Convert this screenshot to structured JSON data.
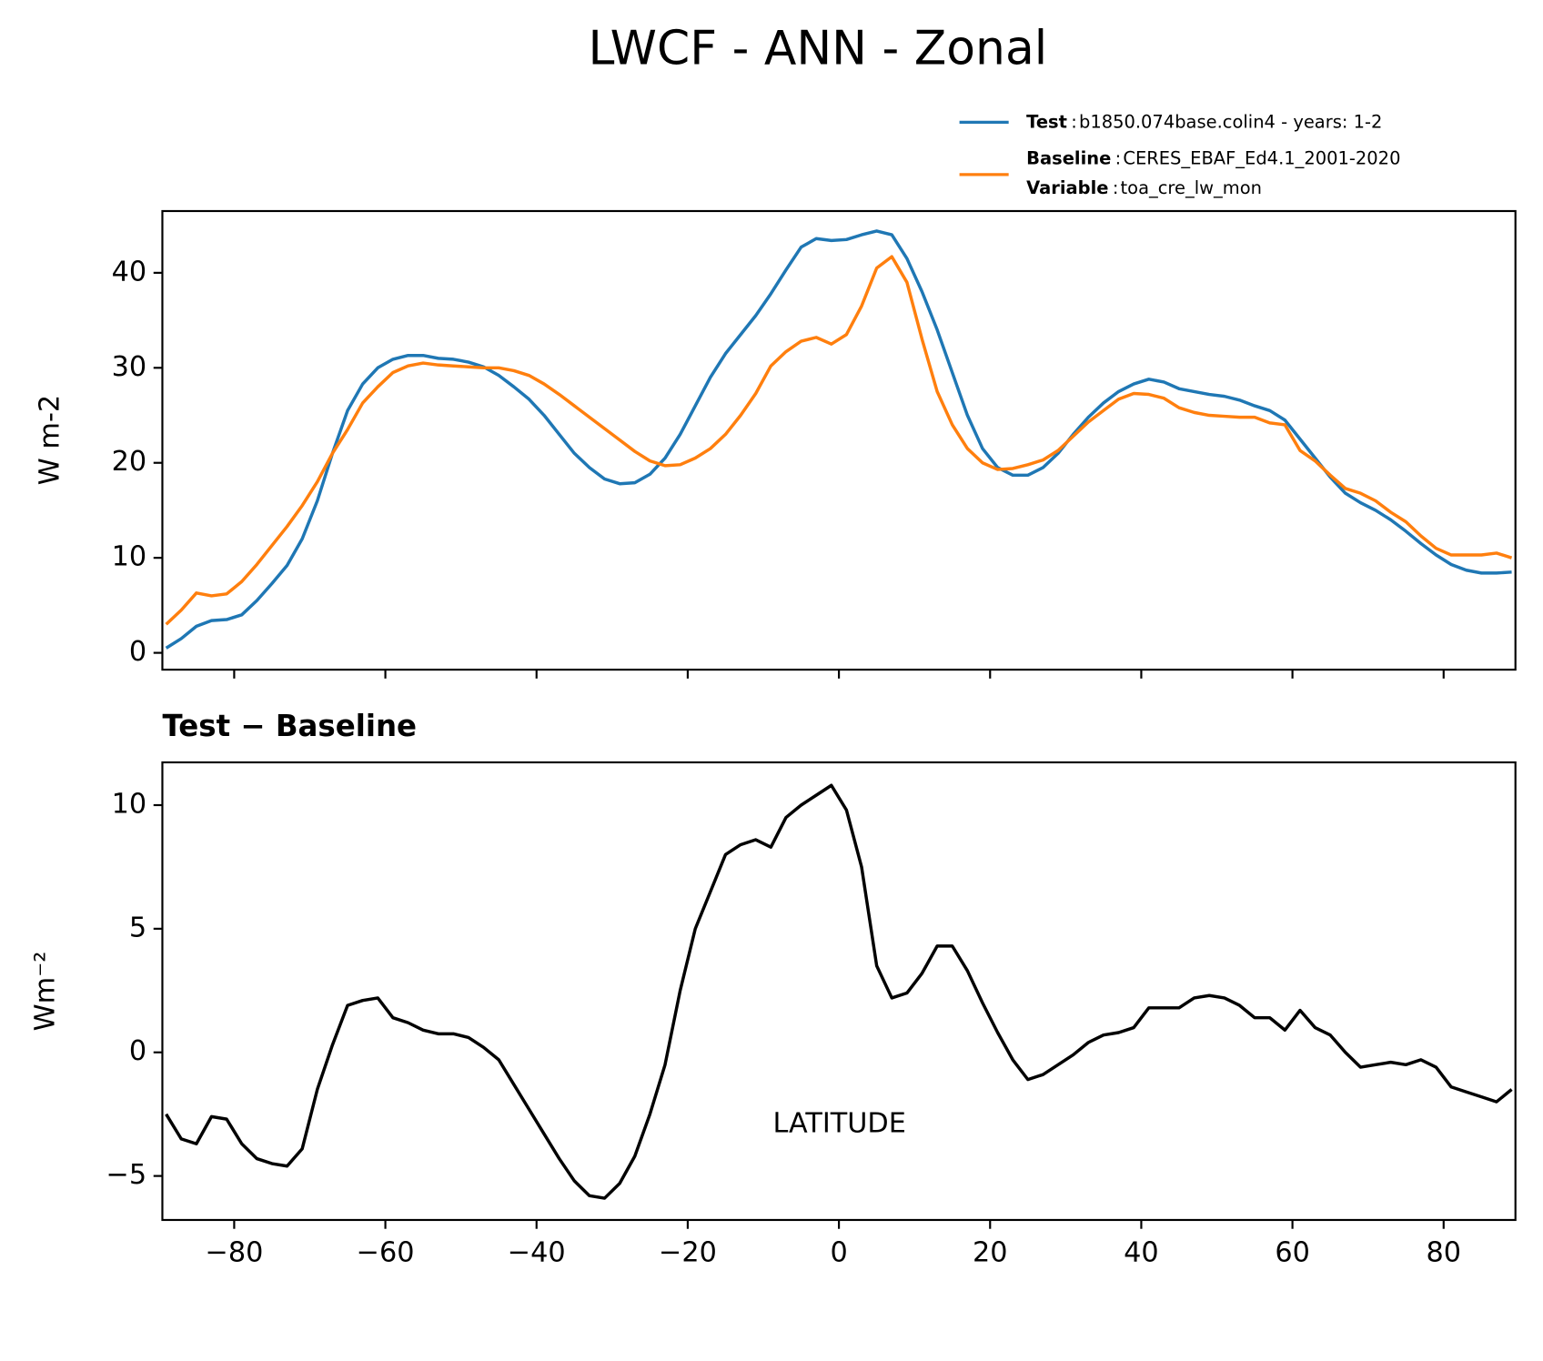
{
  "title": "LWCF - ANN - Zonal",
  "legend": {
    "separator": ":",
    "extra_name": "Variable",
    "extra_label": "toa_cre_lw_mon"
  },
  "chart_data": [
    {
      "type": "line",
      "ylabel": "W m-2",
      "x": [
        -89,
        -87,
        -85,
        -83,
        -81,
        -79,
        -77,
        -75,
        -73,
        -71,
        -69,
        -67,
        -65,
        -63,
        -61,
        -59,
        -57,
        -55,
        -53,
        -51,
        -49,
        -47,
        -45,
        -43,
        -41,
        -39,
        -37,
        -35,
        -33,
        -31,
        -29,
        -27,
        -25,
        -23,
        -21,
        -19,
        -17,
        -15,
        -13,
        -11,
        -9,
        -7,
        -5,
        -3,
        -1,
        1,
        3,
        5,
        7,
        9,
        11,
        13,
        15,
        17,
        19,
        21,
        23,
        25,
        27,
        29,
        31,
        33,
        35,
        37,
        39,
        41,
        43,
        45,
        47,
        49,
        51,
        53,
        55,
        57,
        59,
        61,
        63,
        65,
        67,
        69,
        71,
        73,
        75,
        77,
        79,
        81,
        83,
        85,
        87,
        89
      ],
      "series": [
        {
          "name": "Test",
          "label": "b1850.074base.colin4 - years: 1-2",
          "color": "#1f77b4",
          "values": [
            0.5,
            1.5,
            2.8,
            3.4,
            3.5,
            4.0,
            5.5,
            7.3,
            9.2,
            12,
            16,
            21,
            25.5,
            28.3,
            30,
            30.9,
            31.3,
            31.3,
            31.0,
            30.9,
            30.6,
            30.1,
            29.2,
            28.0,
            26.7,
            25.0,
            23.0,
            21.0,
            19.5,
            18.3,
            17.8,
            17.9,
            18.8,
            20.5,
            23,
            26,
            29,
            31.5,
            33.5,
            35.5,
            37.8,
            40.3,
            42.7,
            43.6,
            43.4,
            43.5,
            44.0,
            44.4,
            44.0,
            41.5,
            38,
            34,
            29.5,
            25,
            21.5,
            19.5,
            18.7,
            18.7,
            19.5,
            21,
            23,
            24.8,
            26.3,
            27.5,
            28.3,
            28.8,
            28.5,
            27.8,
            27.5,
            27.2,
            27.0,
            26.6,
            26.0,
            25.5,
            24.5,
            22.5,
            20.5,
            18.5,
            16.8,
            15.8,
            15.0,
            14.0,
            12.8,
            11.5,
            10.3,
            9.3,
            8.7,
            8.4,
            8.4,
            8.5
          ]
        },
        {
          "name": "Baseline",
          "label": "CERES_EBAF_Ed4.1_2001-2020",
          "color": "#ff7f0e",
          "values": [
            3.0,
            4.5,
            6.3,
            6.0,
            6.2,
            7.5,
            9.3,
            11.3,
            13.3,
            15.5,
            18,
            21,
            23.5,
            26.3,
            28.0,
            29.5,
            30.2,
            30.5,
            30.3,
            30.2,
            30.1,
            30.0,
            30.0,
            29.7,
            29.2,
            28.3,
            27.2,
            26.0,
            24.8,
            23.6,
            22.4,
            21.2,
            20.2,
            19.7,
            19.8,
            20.5,
            21.5,
            23.0,
            25.0,
            27.3,
            30.2,
            31.7,
            32.8,
            33.2,
            32.5,
            33.5,
            36.5,
            40.5,
            41.7,
            39,
            33,
            27.5,
            24,
            21.5,
            20,
            19.3,
            19.4,
            19.8,
            20.3,
            21.3,
            22.8,
            24.3,
            25.5,
            26.7,
            27.3,
            27.2,
            26.8,
            25.8,
            25.3,
            25.0,
            24.9,
            24.8,
            24.8,
            24.2,
            24.0,
            21.3,
            20.2,
            18.7,
            17.3,
            16.8,
            16.0,
            14.8,
            13.8,
            12.3,
            11.0,
            10.3,
            10.3,
            10.3,
            10.5,
            10.0
          ]
        }
      ],
      "xlim": [
        -89.5,
        89.5
      ],
      "ylim": [
        -1.77,
        46.5
      ],
      "yticks": [
        0,
        10,
        20,
        30,
        40
      ]
    },
    {
      "type": "line",
      "title": "Test − Baseline",
      "ylabel": "Wm⁻²",
      "xlabel": "LATITUDE",
      "x": [
        -89,
        -87,
        -85,
        -83,
        -81,
        -79,
        -77,
        -75,
        -73,
        -71,
        -69,
        -67,
        -65,
        -63,
        -61,
        -59,
        -57,
        -55,
        -53,
        -51,
        -49,
        -47,
        -45,
        -43,
        -41,
        -39,
        -37,
        -35,
        -33,
        -31,
        -29,
        -27,
        -25,
        -23,
        -21,
        -19,
        -17,
        -15,
        -13,
        -11,
        -9,
        -7,
        -5,
        -3,
        -1,
        1,
        3,
        5,
        7,
        9,
        11,
        13,
        15,
        17,
        19,
        21,
        23,
        25,
        27,
        29,
        31,
        33,
        35,
        37,
        39,
        41,
        43,
        45,
        47,
        49,
        51,
        53,
        55,
        57,
        59,
        61,
        63,
        65,
        67,
        69,
        71,
        73,
        75,
        77,
        79,
        81,
        83,
        85,
        87,
        89
      ],
      "series": [
        {
          "color": "#000000",
          "values": [
            -2.5,
            -3.5,
            -3.7,
            -2.6,
            -2.7,
            -3.7,
            -4.3,
            -4.5,
            -4.6,
            -3.9,
            -1.5,
            0.3,
            1.9,
            2.1,
            2.2,
            1.4,
            1.2,
            0.9,
            0.75,
            0.75,
            0.6,
            0.2,
            -0.3,
            -1.3,
            -2.3,
            -3.3,
            -4.3,
            -5.2,
            -5.8,
            -5.9,
            -5.3,
            -4.2,
            -2.5,
            -0.5,
            2.5,
            5.0,
            6.5,
            8.0,
            8.4,
            8.6,
            8.3,
            9.5,
            10.0,
            10.4,
            10.8,
            9.8,
            7.5,
            3.5,
            2.2,
            2.4,
            3.2,
            4.3,
            4.3,
            3.3,
            2.0,
            0.8,
            -0.3,
            -1.1,
            -0.9,
            -0.5,
            -0.1,
            0.4,
            0.7,
            0.8,
            1.0,
            1.8,
            1.8,
            1.8,
            2.2,
            2.3,
            2.2,
            1.9,
            1.4,
            1.4,
            0.9,
            1.7,
            1.0,
            0.7,
            0.0,
            -0.6,
            -0.5,
            -0.4,
            -0.5,
            -0.3,
            -0.6,
            -1.4,
            -1.6,
            -1.8,
            -2.0,
            -1.5
          ]
        }
      ],
      "xlim": [
        -89.5,
        89.5
      ],
      "ylim": [
        -6.78,
        11.73
      ],
      "xticks": [
        {
          "value": -80,
          "label": "−80"
        },
        {
          "value": -60,
          "label": "−60"
        },
        {
          "value": -40,
          "label": "−40"
        },
        {
          "value": -20,
          "label": "−20"
        },
        0,
        20,
        40,
        60,
        80
      ],
      "yticks": [
        {
          "value": -5,
          "label": "−5"
        },
        0,
        5,
        10
      ]
    }
  ]
}
